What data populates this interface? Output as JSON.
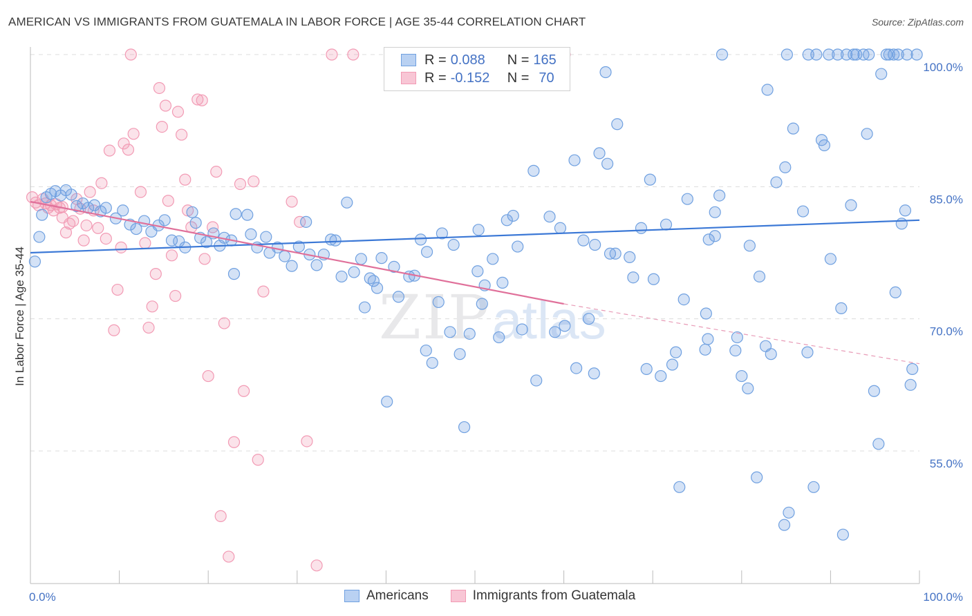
{
  "title": "AMERICAN VS IMMIGRANTS FROM GUATEMALA IN LABOR FORCE | AGE 35-44 CORRELATION CHART",
  "source": "Source: ZipAtlas.com",
  "watermark": "ZIPatlas",
  "legend": {
    "rows": [
      {
        "r_label": "R = ",
        "r_value": "0.088",
        "n_label": "N = ",
        "n_value": "165",
        "color": "#6fa0e0"
      },
      {
        "r_label": "R = ",
        "r_value": "-0.152",
        "n_label": "N = ",
        "n_value": "70",
        "color": "#f29ab4"
      }
    ]
  },
  "bottom_legend": [
    {
      "label": "Americans",
      "color": "#6fa0e0"
    },
    {
      "label": "Immigrants from Guatemala",
      "color": "#f29ab4"
    }
  ],
  "chart_data": {
    "type": "scatter",
    "title": "AMERICAN VS IMMIGRANTS FROM GUATEMALA IN LABOR FORCE | AGE 35-44 CORRELATION CHART",
    "xlabel": "",
    "ylabel": "In Labor Force | Age 35-44",
    "xlim": [
      0,
      100
    ],
    "ylim": [
      37,
      102
    ],
    "x_tick_labels": [
      "0.0%",
      "100.0%"
    ],
    "y_ticks": [
      55,
      70,
      85,
      100
    ],
    "y_tick_labels": [
      "55.0%",
      "70.0%",
      "85.0%",
      "100.0%"
    ],
    "grid": true,
    "legend_position": "top-center",
    "series": [
      {
        "name": "Americans",
        "color": "#6fa0e0",
        "r": 0.088,
        "n": 165,
        "trend": {
          "x": [
            0,
            100
          ],
          "y": [
            77.5,
            81.2
          ]
        },
        "points": [
          [
            0.5,
            76.5
          ],
          [
            1.0,
            79.3
          ],
          [
            1.3,
            81.8
          ],
          [
            1.8,
            83.8
          ],
          [
            2.3,
            84.2
          ],
          [
            2.8,
            84.5
          ],
          [
            3.4,
            84.0
          ],
          [
            4.0,
            84.6
          ],
          [
            4.6,
            84.1
          ],
          [
            5.2,
            82.8
          ],
          [
            5.9,
            83.1
          ],
          [
            6.5,
            82.6
          ],
          [
            7.2,
            82.9
          ],
          [
            7.9,
            82.2
          ],
          [
            8.5,
            82.6
          ],
          [
            9.6,
            81.4
          ],
          [
            10.4,
            82.3
          ],
          [
            11.2,
            80.7
          ],
          [
            11.9,
            80.2
          ],
          [
            12.8,
            81.1
          ],
          [
            13.6,
            79.9
          ],
          [
            14.4,
            80.6
          ],
          [
            15.1,
            81.2
          ],
          [
            15.9,
            78.9
          ],
          [
            16.7,
            78.8
          ],
          [
            17.4,
            78.1
          ],
          [
            18.2,
            82.1
          ],
          [
            18.6,
            80.9
          ],
          [
            19.1,
            79.2
          ],
          [
            19.8,
            78.7
          ],
          [
            20.6,
            79.7
          ],
          [
            21.3,
            78.3
          ],
          [
            21.8,
            79.2
          ],
          [
            22.6,
            78.9
          ],
          [
            23.1,
            81.9
          ],
          [
            22.9,
            75.1
          ],
          [
            24.4,
            81.8
          ],
          [
            24.8,
            79.6
          ],
          [
            25.5,
            78.1
          ],
          [
            26.5,
            79.3
          ],
          [
            26.9,
            77.5
          ],
          [
            27.8,
            78.1
          ],
          [
            28.6,
            77.1
          ],
          [
            29.4,
            76.0
          ],
          [
            30.2,
            78.2
          ],
          [
            31.0,
            81.0
          ],
          [
            31.4,
            77.3
          ],
          [
            32.2,
            76.1
          ],
          [
            33.0,
            77.3
          ],
          [
            33.8,
            79.0
          ],
          [
            34.3,
            78.9
          ],
          [
            35.0,
            74.8
          ],
          [
            35.6,
            83.2
          ],
          [
            36.4,
            75.3
          ],
          [
            37.2,
            76.8
          ],
          [
            37.6,
            71.3
          ],
          [
            38.6,
            74.3
          ],
          [
            39.0,
            73.5
          ],
          [
            39.5,
            76.9
          ],
          [
            40.9,
            75.9
          ],
          [
            41.4,
            72.5
          ],
          [
            42.6,
            74.8
          ],
          [
            43.2,
            74.9
          ],
          [
            43.9,
            79.0
          ],
          [
            44.6,
            77.6
          ],
          [
            44.5,
            66.4
          ],
          [
            45.9,
            71.9
          ],
          [
            46.3,
            79.7
          ],
          [
            47.2,
            68.5
          ],
          [
            47.6,
            78.4
          ],
          [
            48.3,
            66.0
          ],
          [
            48.8,
            57.7
          ],
          [
            49.4,
            68.3
          ],
          [
            50.3,
            75.4
          ],
          [
            50.4,
            80.1
          ],
          [
            51.1,
            73.8
          ],
          [
            52.0,
            76.8
          ],
          [
            52.7,
            67.9
          ],
          [
            53.1,
            74.1
          ],
          [
            53.6,
            81.2
          ],
          [
            54.3,
            81.7
          ],
          [
            54.8,
            78.2
          ],
          [
            55.3,
            68.8
          ],
          [
            56.6,
            86.8
          ],
          [
            56.9,
            63.0
          ],
          [
            58.4,
            81.6
          ],
          [
            59.0,
            68.5
          ],
          [
            59.6,
            80.3
          ],
          [
            60.1,
            69.2
          ],
          [
            61.2,
            88.0
          ],
          [
            61.4,
            64.4
          ],
          [
            62.2,
            78.9
          ],
          [
            62.8,
            70.0
          ],
          [
            63.4,
            63.8
          ],
          [
            64.7,
            98.0
          ],
          [
            64.9,
            87.6
          ],
          [
            65.2,
            77.4
          ],
          [
            65.8,
            77.4
          ],
          [
            67.4,
            77.0
          ],
          [
            67.8,
            74.7
          ],
          [
            66.0,
            92.1
          ],
          [
            68.7,
            80.3
          ],
          [
            69.3,
            64.3
          ],
          [
            70.1,
            74.5
          ],
          [
            70.9,
            63.5
          ],
          [
            72.2,
            64.8
          ],
          [
            72.6,
            66.2
          ],
          [
            73.0,
            50.9
          ],
          [
            73.5,
            72.2
          ],
          [
            75.9,
            66.5
          ],
          [
            76.0,
            70.6
          ],
          [
            76.2,
            67.7
          ],
          [
            76.3,
            79.0
          ],
          [
            77.0,
            82.1
          ],
          [
            77.5,
            84.0
          ],
          [
            77.8,
            100.0
          ],
          [
            79.3,
            66.4
          ],
          [
            79.5,
            67.9
          ],
          [
            80.0,
            63.5
          ],
          [
            80.7,
            62.1
          ],
          [
            80.9,
            78.3
          ],
          [
            81.7,
            52.0
          ],
          [
            82.0,
            74.8
          ],
          [
            82.9,
            96.0
          ],
          [
            82.7,
            66.9
          ],
          [
            83.3,
            66.0
          ],
          [
            84.9,
            87.2
          ],
          [
            85.8,
            91.6
          ],
          [
            86.9,
            82.2
          ],
          [
            87.4,
            66.2
          ],
          [
            87.5,
            100.0
          ],
          [
            88.4,
            100.0
          ],
          [
            89.0,
            90.3
          ],
          [
            89.3,
            89.7
          ],
          [
            89.8,
            100.0
          ],
          [
            90.0,
            76.8
          ],
          [
            90.8,
            100.0
          ],
          [
            91.2,
            71.2
          ],
          [
            91.8,
            100.0
          ],
          [
            92.3,
            82.9
          ],
          [
            92.6,
            100.0
          ],
          [
            93.7,
            100.0
          ],
          [
            94.3,
            100.0
          ],
          [
            94.9,
            61.8
          ],
          [
            95.4,
            55.8
          ],
          [
            95.7,
            97.8
          ],
          [
            96.6,
            100.0
          ],
          [
            97.1,
            100.0
          ],
          [
            97.6,
            100.0
          ],
          [
            98.0,
            80.8
          ],
          [
            98.6,
            100.0
          ],
          [
            99.2,
            64.3
          ],
          [
            99.7,
            100.0
          ],
          [
            83.9,
            85.5
          ],
          [
            84.8,
            46.6
          ],
          [
            85.3,
            48.0
          ],
          [
            73.9,
            83.6
          ],
          [
            69.7,
            85.8
          ],
          [
            71.5,
            80.7
          ],
          [
            63.5,
            78.4
          ],
          [
            40.1,
            60.6
          ],
          [
            88.1,
            50.9
          ],
          [
            91.4,
            45.5
          ],
          [
            85.1,
            100.0
          ],
          [
            92.9,
            100.0
          ],
          [
            94.1,
            91.0
          ],
          [
            96.3,
            100.0
          ],
          [
            98.4,
            82.3
          ],
          [
            97.3,
            73.0
          ],
          [
            99.0,
            62.5
          ],
          [
            64.0,
            88.8
          ],
          [
            77.0,
            79.4
          ],
          [
            45.2,
            65.0
          ],
          [
            50.8,
            71.7
          ],
          [
            38.2,
            74.6
          ]
        ]
      },
      {
        "name": "Immigrants from Guatemala",
        "color": "#f29ab4",
        "r": -0.152,
        "n": 70,
        "trend": {
          "x": [
            0,
            60
          ],
          "y": [
            83.3,
            71.7
          ]
        },
        "trend_dashed": {
          "x": [
            60,
            100
          ],
          "y": [
            71.7,
            64.9
          ]
        },
        "points": [
          [
            0.2,
            83.8
          ],
          [
            0.6,
            83.2
          ],
          [
            0.9,
            82.9
          ],
          [
            1.4,
            83.6
          ],
          [
            1.7,
            83.1
          ],
          [
            2.0,
            82.6
          ],
          [
            2.3,
            82.9
          ],
          [
            2.6,
            82.3
          ],
          [
            2.9,
            83.0
          ],
          [
            3.3,
            82.6
          ],
          [
            3.6,
            81.5
          ],
          [
            4.0,
            79.8
          ],
          [
            4.4,
            80.8
          ],
          [
            4.8,
            81.1
          ],
          [
            5.2,
            83.6
          ],
          [
            5.6,
            82.5
          ],
          [
            6.0,
            78.9
          ],
          [
            6.3,
            80.6
          ],
          [
            6.7,
            84.4
          ],
          [
            7.1,
            82.3
          ],
          [
            7.6,
            80.3
          ],
          [
            8.0,
            85.4
          ],
          [
            8.5,
            79.1
          ],
          [
            8.9,
            89.1
          ],
          [
            9.4,
            68.7
          ],
          [
            9.8,
            73.3
          ],
          [
            10.2,
            78.1
          ],
          [
            10.5,
            89.9
          ],
          [
            11.0,
            89.2
          ],
          [
            11.6,
            91.0
          ],
          [
            12.4,
            84.4
          ],
          [
            12.9,
            78.6
          ],
          [
            13.3,
            69.0
          ],
          [
            13.7,
            71.4
          ],
          [
            14.1,
            75.1
          ],
          [
            14.5,
            96.2
          ],
          [
            14.8,
            91.8
          ],
          [
            15.2,
            94.2
          ],
          [
            15.5,
            83.4
          ],
          [
            15.9,
            77.2
          ],
          [
            16.3,
            72.6
          ],
          [
            16.6,
            93.5
          ],
          [
            17.0,
            90.9
          ],
          [
            17.4,
            85.8
          ],
          [
            17.7,
            82.3
          ],
          [
            18.1,
            80.4
          ],
          [
            18.8,
            94.9
          ],
          [
            19.3,
            94.8
          ],
          [
            19.6,
            76.8
          ],
          [
            20.0,
            63.5
          ],
          [
            20.5,
            80.4
          ],
          [
            20.9,
            86.7
          ],
          [
            21.4,
            47.6
          ],
          [
            21.8,
            69.5
          ],
          [
            22.3,
            43.0
          ],
          [
            22.9,
            56.0
          ],
          [
            23.6,
            85.3
          ],
          [
            24.0,
            61.8
          ],
          [
            25.1,
            85.6
          ],
          [
            25.6,
            54.0
          ],
          [
            26.2,
            73.1
          ],
          [
            29.4,
            83.3
          ],
          [
            30.3,
            81.0
          ],
          [
            31.1,
            56.1
          ],
          [
            32.2,
            42.0
          ],
          [
            33.9,
            100.0
          ],
          [
            36.3,
            100.0
          ],
          [
            60.1,
            100.0
          ],
          [
            11.3,
            100.0
          ],
          [
            3.6,
            82.7
          ]
        ]
      }
    ]
  }
}
